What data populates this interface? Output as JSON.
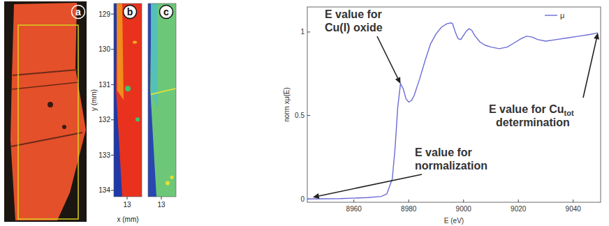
{
  "panels": [
    {
      "letter": "a"
    },
    {
      "letter": "b"
    },
    {
      "letter": "c"
    }
  ],
  "maps": {
    "ylabel": "y (mm)",
    "xlabel": "x (mm)",
    "ylim": [
      128.7,
      134.18
    ],
    "yticks": [
      129,
      130,
      131,
      132,
      133,
      134
    ],
    "xlim": [
      12.62,
      13.42
    ],
    "xticks": [
      13
    ]
  },
  "chart_data": {
    "type": "line",
    "xlabel": "E (eV)",
    "ylabel": "norm xμ(E)",
    "x": [
      8943,
      8955,
      8965,
      8970,
      8972,
      8974,
      8975,
      8976,
      8977,
      8978,
      8979,
      8980,
      8981,
      8982,
      8984,
      8986,
      8988,
      8990,
      8992,
      8994,
      8995.5,
      8996,
      8997,
      8998,
      8999,
      9000,
      9001,
      9002,
      9003,
      9004,
      9006,
      9008,
      9010,
      9013,
      9016,
      9019,
      9021,
      9023,
      9025,
      9027,
      9030,
      9034,
      9038,
      9042,
      9046,
      9049
    ],
    "series": [
      {
        "name": "μ",
        "color": "#6b6bd6",
        "values": [
          0,
          0.002,
          0.008,
          0.015,
          0.03,
          0.12,
          0.3,
          0.55,
          0.69,
          0.66,
          0.6,
          0.58,
          0.59,
          0.62,
          0.72,
          0.83,
          0.93,
          0.99,
          1.03,
          1.05,
          1.055,
          1.05,
          1.0,
          0.96,
          0.955,
          0.98,
          1.005,
          1.02,
          1.01,
          0.98,
          0.94,
          0.92,
          0.91,
          0.9,
          0.91,
          0.94,
          0.96,
          0.975,
          0.97,
          0.955,
          0.945,
          0.955,
          0.965,
          0.975,
          0.985,
          0.995
        ]
      }
    ],
    "xlim": [
      8943,
      9050
    ],
    "xticks": [
      8960,
      8980,
      9000,
      9020,
      9040
    ],
    "ylim": [
      -0.02,
      1.15
    ],
    "yticks": [
      0,
      0.5,
      1
    ],
    "legend": "top-right",
    "annotations": [
      {
        "lines": [
          "E value for",
          "Cu(I) oxide"
        ],
        "x": 8977,
        "y": 0.69
      },
      {
        "lines": [
          "E value for",
          "normalization"
        ],
        "x": 8945,
        "y": 0.01
      },
      {
        "lines": [
          "E value for Cu",
          "determination"
        ],
        "subscript": "tot",
        "x": 9049,
        "y": 0.995
      }
    ]
  }
}
